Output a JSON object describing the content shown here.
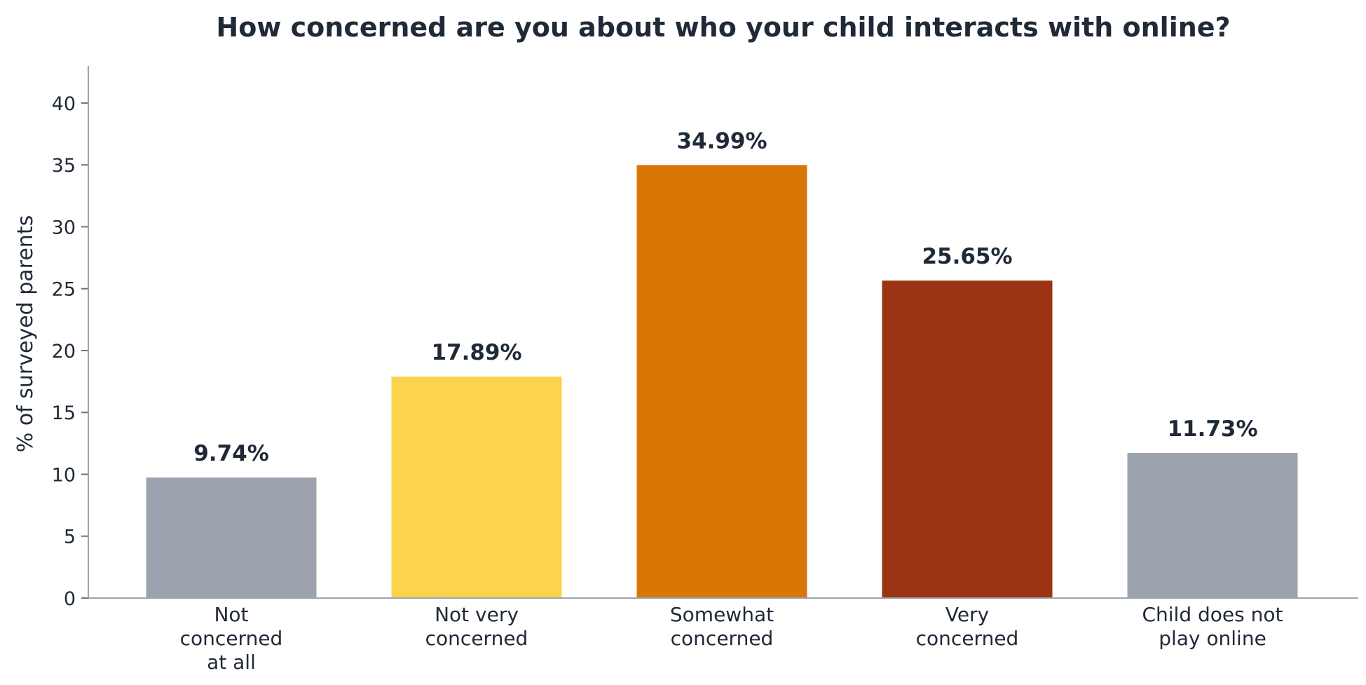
{
  "chart_data": {
    "type": "bar",
    "title": "How concerned are you about who your child interacts with online?",
    "xlabel": "",
    "ylabel": "% of surveyed parents",
    "ylim": [
      0,
      43
    ],
    "yticks": [
      0,
      5,
      10,
      15,
      20,
      25,
      30,
      35,
      40
    ],
    "categories": [
      [
        "Not",
        "concerned",
        "at all"
      ],
      [
        "Not very",
        "concerned"
      ],
      [
        "Somewhat",
        "concerned"
      ],
      [
        "Very",
        "concerned"
      ],
      [
        "Child does not",
        "play online"
      ]
    ],
    "values": [
      9.74,
      17.89,
      34.99,
      25.65,
      11.73
    ],
    "value_labels": [
      "9.74%",
      "17.89%",
      "34.99%",
      "25.65%",
      "11.73%"
    ],
    "colors": [
      "#9ca3af",
      "#fcd34d",
      "#d97706",
      "#9a3412",
      "#9ca3af"
    ],
    "grid": false,
    "legend": "none"
  }
}
